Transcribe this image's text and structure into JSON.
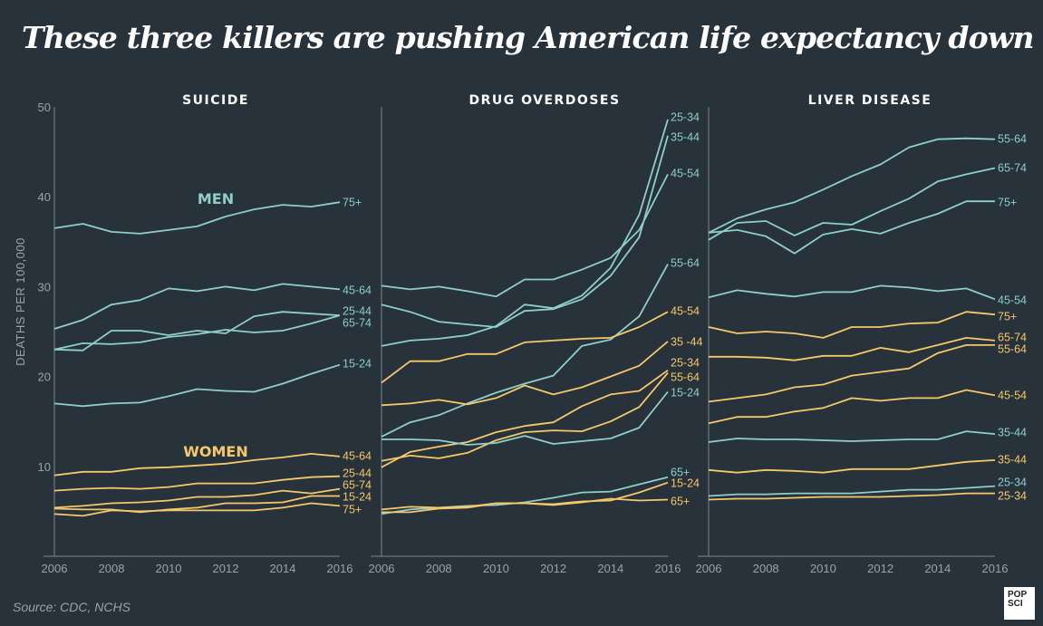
{
  "title": "These three killers are pushing American life expectancy down",
  "source": "Source: CDC, NCHS",
  "logo": [
    "POP",
    "SCI"
  ],
  "colors": {
    "men": "#8ecfcb",
    "women": "#f5c86a",
    "background": "#27323a",
    "axis": "#7d868c"
  },
  "chart_data": {
    "type": "line",
    "ylabel": "DEATHS PER 100,000",
    "ylim": [
      0,
      50
    ],
    "yticks": [
      10,
      20,
      30,
      40,
      50
    ],
    "x": [
      2006,
      2007,
      2008,
      2009,
      2010,
      2011,
      2012,
      2013,
      2014,
      2015,
      2016
    ],
    "xticks": [
      2006,
      2008,
      2010,
      2012,
      2014,
      2016
    ],
    "grid": false,
    "group_labels": {
      "men": "MEN",
      "women": "WOMEN"
    },
    "panels": [
      {
        "title": "SUICIDE",
        "series": [
          {
            "name": "75+",
            "group": "men",
            "values": [
              36.5,
              37.0,
              36.1,
              35.9,
              36.3,
              36.7,
              37.8,
              38.6,
              39.1,
              38.9,
              39.4
            ]
          },
          {
            "name": "45-64",
            "group": "men",
            "values": [
              25.3,
              26.3,
              28.0,
              28.5,
              29.8,
              29.5,
              30.0,
              29.6,
              30.3,
              30.0,
              29.7
            ]
          },
          {
            "name": "25-44",
            "group": "men",
            "values": [
              23.0,
              22.9,
              25.1,
              25.1,
              24.6,
              25.1,
              24.8,
              26.7,
              27.2,
              27.0,
              26.8
            ]
          },
          {
            "name": "65-74",
            "group": "men",
            "values": [
              23.0,
              23.7,
              23.6,
              23.8,
              24.4,
              24.7,
              25.2,
              24.9,
              25.1,
              25.9,
              26.8
            ]
          },
          {
            "name": "15-24",
            "group": "men",
            "values": [
              17.0,
              16.7,
              17.0,
              17.1,
              17.8,
              18.6,
              18.4,
              18.3,
              19.2,
              20.3,
              21.3
            ]
          },
          {
            "name": "45-64",
            "group": "women",
            "values": [
              9.0,
              9.4,
              9.4,
              9.8,
              9.9,
              10.1,
              10.3,
              10.7,
              11.0,
              11.4,
              11.1
            ]
          },
          {
            "name": "25-44",
            "group": "women",
            "values": [
              7.3,
              7.5,
              7.6,
              7.5,
              7.7,
              8.1,
              8.1,
              8.1,
              8.5,
              8.8,
              8.9
            ]
          },
          {
            "name": "65-74",
            "group": "women",
            "values": [
              5.4,
              5.6,
              5.9,
              6.0,
              6.2,
              6.6,
              6.6,
              6.8,
              7.3,
              7.0,
              7.5
            ]
          },
          {
            "name": "15-24",
            "group": "women",
            "values": [
              5.3,
              5.2,
              5.2,
              4.9,
              5.2,
              5.4,
              5.9,
              5.9,
              6.0,
              6.7,
              6.7
            ]
          },
          {
            "name": "75+",
            "group": "women",
            "values": [
              4.7,
              4.5,
              5.1,
              5.0,
              5.1,
              5.1,
              5.1,
              5.1,
              5.4,
              5.9,
              5.6
            ]
          }
        ]
      },
      {
        "title": "DRUG OVERDOSES",
        "series": [
          {
            "name": "25-34",
            "group": "men",
            "values": [
              23.4,
              24.0,
              24.2,
              24.6,
              25.6,
              28.0,
              27.6,
              29.0,
              32.1,
              38.0,
              48.6
            ]
          },
          {
            "name": "35-44",
            "group": "men",
            "values": [
              28.0,
              27.2,
              26.1,
              25.8,
              25.5,
              27.3,
              27.5,
              28.6,
              31.2,
              35.5,
              46.8
            ]
          },
          {
            "name": "45-54",
            "group": "men",
            "values": [
              30.1,
              29.7,
              30.0,
              29.5,
              28.9,
              30.8,
              30.8,
              31.9,
              33.2,
              36.3,
              42.5
            ]
          },
          {
            "name": "55-64",
            "group": "men",
            "values": [
              13.3,
              14.9,
              15.7,
              17.0,
              18.2,
              19.2,
              20.1,
              23.4,
              24.1,
              26.7,
              32.5
            ]
          },
          {
            "name": "45-54",
            "group": "women",
            "values": [
              19.3,
              21.7,
              21.7,
              22.5,
              22.5,
              23.8,
              24.0,
              24.2,
              24.3,
              25.5,
              27.2
            ]
          },
          {
            "name": "35 -44",
            "group": "women",
            "values": [
              16.8,
              17.0,
              17.4,
              16.9,
              17.6,
              19.0,
              18.0,
              18.8,
              20.0,
              21.2,
              23.9
            ]
          },
          {
            "name": "25-34",
            "group": "women",
            "values": [
              9.9,
              11.6,
              12.2,
              12.7,
              13.8,
              14.5,
              14.9,
              16.7,
              18.0,
              18.4,
              20.7
            ]
          },
          {
            "name": "55-64",
            "group": "women",
            "values": [
              10.6,
              11.2,
              10.9,
              11.5,
              12.9,
              13.8,
              14.0,
              13.9,
              15.0,
              16.6,
              20.4
            ]
          },
          {
            "name": "15-24",
            "group": "men",
            "values": [
              13.0,
              13.0,
              12.9,
              12.4,
              12.6,
              13.4,
              12.5,
              12.8,
              13.1,
              14.3,
              18.3
            ]
          },
          {
            "name": "65+",
            "group": "men",
            "values": [
              4.7,
              5.2,
              5.4,
              5.6,
              5.7,
              6.0,
              6.5,
              7.1,
              7.2,
              8.0,
              8.8
            ]
          },
          {
            "name": "15-24",
            "group": "women",
            "values": [
              4.9,
              4.9,
              5.3,
              5.4,
              5.9,
              5.9,
              5.8,
              6.1,
              6.2,
              7.1,
              8.2
            ]
          },
          {
            "name": "65+",
            "group": "women",
            "values": [
              5.2,
              5.5,
              5.4,
              5.5,
              5.9,
              5.9,
              5.7,
              6.0,
              6.4,
              6.2,
              6.3
            ]
          }
        ]
      },
      {
        "title": "LIVER DISEASE",
        "series": [
          {
            "name": "55-64",
            "group": "men",
            "values": [
              36.0,
              37.6,
              38.6,
              39.4,
              40.8,
              42.3,
              43.6,
              45.5,
              46.4,
              46.5,
              46.4
            ]
          },
          {
            "name": "65-74",
            "group": "men",
            "values": [
              35.2,
              37.1,
              37.3,
              35.7,
              37.1,
              36.9,
              38.4,
              39.8,
              41.7,
              42.5,
              43.2
            ]
          },
          {
            "name": "75+",
            "group": "men",
            "values": [
              36.0,
              36.3,
              35.6,
              33.7,
              35.8,
              36.4,
              35.9,
              37.1,
              38.1,
              39.5,
              39.5
            ]
          },
          {
            "name": "45-54",
            "group": "men",
            "values": [
              28.8,
              29.6,
              29.2,
              28.9,
              29.4,
              29.4,
              30.1,
              29.9,
              29.5,
              29.8,
              28.6
            ]
          },
          {
            "name": "75+",
            "group": "women",
            "values": [
              25.5,
              24.8,
              25.0,
              24.8,
              24.3,
              25.5,
              25.5,
              25.9,
              26.0,
              27.2,
              26.9
            ]
          },
          {
            "name": "65-74",
            "group": "women",
            "values": [
              22.2,
              22.2,
              22.1,
              21.8,
              22.3,
              22.3,
              23.2,
              22.7,
              23.5,
              24.3,
              24.0
            ]
          },
          {
            "name": "55-64",
            "group": "women",
            "values": [
              17.2,
              17.6,
              18.0,
              18.8,
              19.1,
              20.1,
              20.5,
              20.9,
              22.6,
              23.5,
              23.5
            ]
          },
          {
            "name": "45-54",
            "group": "women",
            "values": [
              14.8,
              15.5,
              15.5,
              16.1,
              16.5,
              17.6,
              17.3,
              17.6,
              17.6,
              18.5,
              17.9
            ]
          },
          {
            "name": "35-44",
            "group": "men",
            "values": [
              12.7,
              13.1,
              13.0,
              13.0,
              12.9,
              12.8,
              12.9,
              13.0,
              13.0,
              13.9,
              13.6
            ]
          },
          {
            "name": "35-44",
            "group": "women",
            "values": [
              9.6,
              9.3,
              9.6,
              9.5,
              9.3,
              9.7,
              9.7,
              9.7,
              10.1,
              10.5,
              10.7
            ]
          },
          {
            "name": "25-34",
            "group": "men",
            "values": [
              6.7,
              6.9,
              6.9,
              7.0,
              7.0,
              7.0,
              7.2,
              7.4,
              7.4,
              7.6,
              7.8
            ]
          },
          {
            "name": "25-34",
            "group": "women",
            "values": [
              6.3,
              6.4,
              6.4,
              6.5,
              6.6,
              6.6,
              6.6,
              6.7,
              6.8,
              7.0,
              7.0
            ]
          }
        ]
      }
    ]
  }
}
